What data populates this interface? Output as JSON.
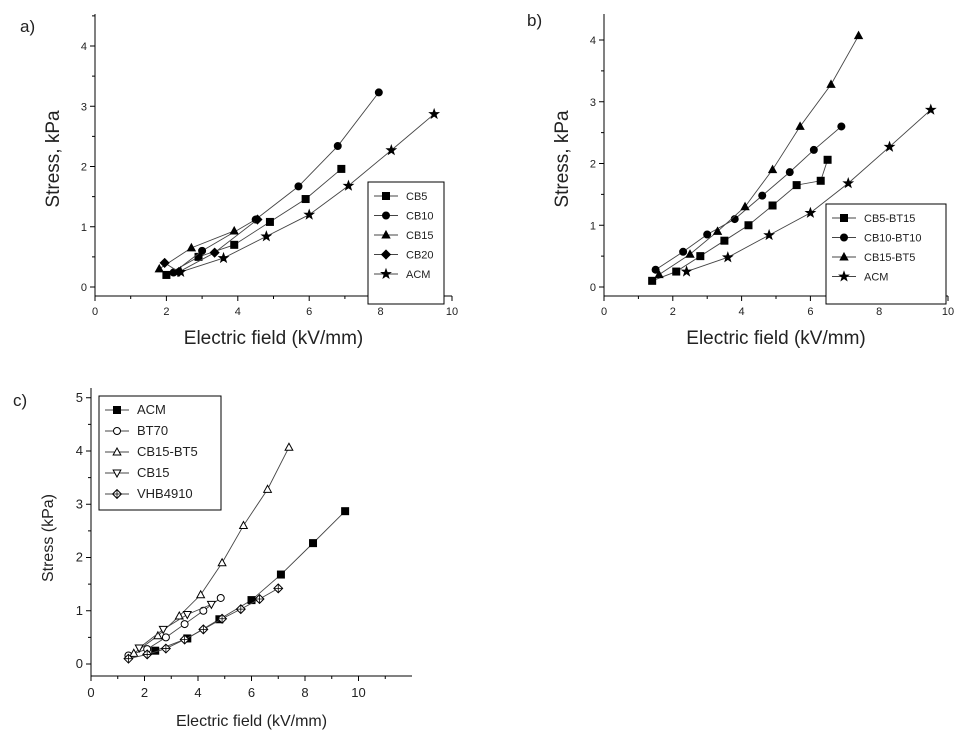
{
  "chart_data": [
    {
      "panel_label": "a)",
      "type": "line",
      "xlabel": "Electric field (kV/mm)",
      "ylabel": "Stress, kPa",
      "xlim": [
        0,
        10
      ],
      "ylim": [
        -0.1,
        4.3
      ],
      "xticks": [
        0,
        2,
        4,
        6,
        8,
        10
      ],
      "yticks": [
        0,
        1,
        2,
        3,
        4
      ],
      "legend_position": "center-right",
      "series": [
        {
          "name": "CB5",
          "marker": "square-filled",
          "x": [
            2.0,
            2.9,
            3.9,
            4.9,
            5.9,
            6.9
          ],
          "y": [
            0.2,
            0.5,
            0.7,
            1.08,
            1.46,
            1.96
          ]
        },
        {
          "name": "CB10",
          "marker": "circle-filled",
          "x": [
            2.2,
            3.0,
            4.5,
            5.7,
            6.8,
            7.95
          ],
          "y": [
            0.24,
            0.6,
            1.12,
            1.67,
            2.34,
            3.23
          ]
        },
        {
          "name": "CB15",
          "marker": "triangle-up-filled",
          "x": [
            1.8,
            2.7,
            3.9
          ],
          "y": [
            0.3,
            0.65,
            0.93
          ]
        },
        {
          "name": "CB20",
          "marker": "diamond-filled",
          "x": [
            1.95,
            2.35,
            3.35,
            4.55
          ],
          "y": [
            0.4,
            0.25,
            0.57,
            1.12
          ]
        },
        {
          "name": "ACM",
          "marker": "star-filled",
          "x": [
            2.4,
            3.6,
            4.8,
            6.0,
            7.1,
            8.3,
            9.5
          ],
          "y": [
            0.25,
            0.48,
            0.84,
            1.2,
            1.68,
            2.27,
            2.87
          ]
        }
      ]
    },
    {
      "panel_label": "b)",
      "type": "line",
      "xlabel": "Electric field (kV/mm)",
      "ylabel": "Stress, kPa",
      "xlim": [
        0,
        10
      ],
      "ylim": [
        -0.1,
        4.3
      ],
      "xticks": [
        0,
        2,
        4,
        6,
        8,
        10
      ],
      "yticks": [
        0,
        1,
        2,
        3,
        4
      ],
      "legend_position": "center-right",
      "series": [
        {
          "name": "CB5-BT15",
          "marker": "square-filled",
          "x": [
            1.4,
            2.1,
            2.8,
            3.5,
            4.2,
            4.9,
            5.6,
            6.3,
            6.5
          ],
          "y": [
            0.1,
            0.25,
            0.5,
            0.75,
            1.0,
            1.32,
            1.65,
            1.72,
            2.06
          ]
        },
        {
          "name": "CB10-BT10",
          "marker": "circle-filled",
          "x": [
            1.5,
            2.3,
            3.0,
            3.8,
            4.6,
            5.4,
            6.1,
            6.9
          ],
          "y": [
            0.28,
            0.57,
            0.85,
            1.1,
            1.48,
            1.86,
            2.22,
            2.6
          ]
        },
        {
          "name": "CB15-BT5",
          "marker": "triangle-up-filled",
          "x": [
            1.6,
            2.5,
            3.3,
            4.1,
            4.9,
            5.7,
            6.6,
            7.4
          ],
          "y": [
            0.2,
            0.53,
            0.9,
            1.3,
            1.9,
            2.6,
            3.28,
            4.07
          ]
        },
        {
          "name": "ACM",
          "marker": "star-filled",
          "x": [
            2.4,
            3.6,
            4.8,
            6.0,
            7.1,
            8.3,
            9.5
          ],
          "y": [
            0.25,
            0.48,
            0.84,
            1.2,
            1.68,
            2.27,
            2.87
          ]
        }
      ]
    },
    {
      "panel_label": "c)",
      "type": "line",
      "xlabel": "Electric field (kV/mm)",
      "ylabel": "Stress (kPa)",
      "xlim": [
        0,
        12
      ],
      "ylim": [
        -0.25,
        5
      ],
      "xticks": [
        0,
        2,
        4,
        6,
        8,
        10
      ],
      "yticks": [
        0,
        1,
        2,
        3,
        4,
        5
      ],
      "legend_position": "top-left",
      "series": [
        {
          "name": "ACM",
          "marker": "square-filled",
          "x": [
            2.4,
            3.6,
            4.8,
            6.0,
            7.1,
            8.3,
            9.5
          ],
          "y": [
            0.25,
            0.48,
            0.84,
            1.2,
            1.68,
            2.27,
            2.87
          ]
        },
        {
          "name": "BT70",
          "marker": "circle-open",
          "x": [
            1.4,
            2.1,
            2.8,
            3.5,
            4.2,
            4.85
          ],
          "y": [
            0.16,
            0.28,
            0.5,
            0.75,
            1.0,
            1.24
          ]
        },
        {
          "name": "CB15-BT5",
          "marker": "triangle-up-open",
          "x": [
            1.6,
            2.5,
            3.3,
            4.1,
            4.9,
            5.7,
            6.6,
            7.4
          ],
          "y": [
            0.2,
            0.53,
            0.9,
            1.3,
            1.9,
            2.6,
            3.28,
            4.07
          ]
        },
        {
          "name": "CB15",
          "marker": "triangle-down-open",
          "x": [
            1.8,
            2.7,
            3.6,
            4.5
          ],
          "y": [
            0.3,
            0.65,
            0.93,
            1.12
          ]
        },
        {
          "name": "VHB4910",
          "marker": "diamond-cross-open",
          "x": [
            1.4,
            2.1,
            2.8,
            3.5,
            4.2,
            4.9,
            5.6,
            6.3,
            7.0
          ],
          "y": [
            0.1,
            0.18,
            0.29,
            0.46,
            0.65,
            0.85,
            1.03,
            1.22,
            1.42
          ]
        }
      ]
    }
  ]
}
